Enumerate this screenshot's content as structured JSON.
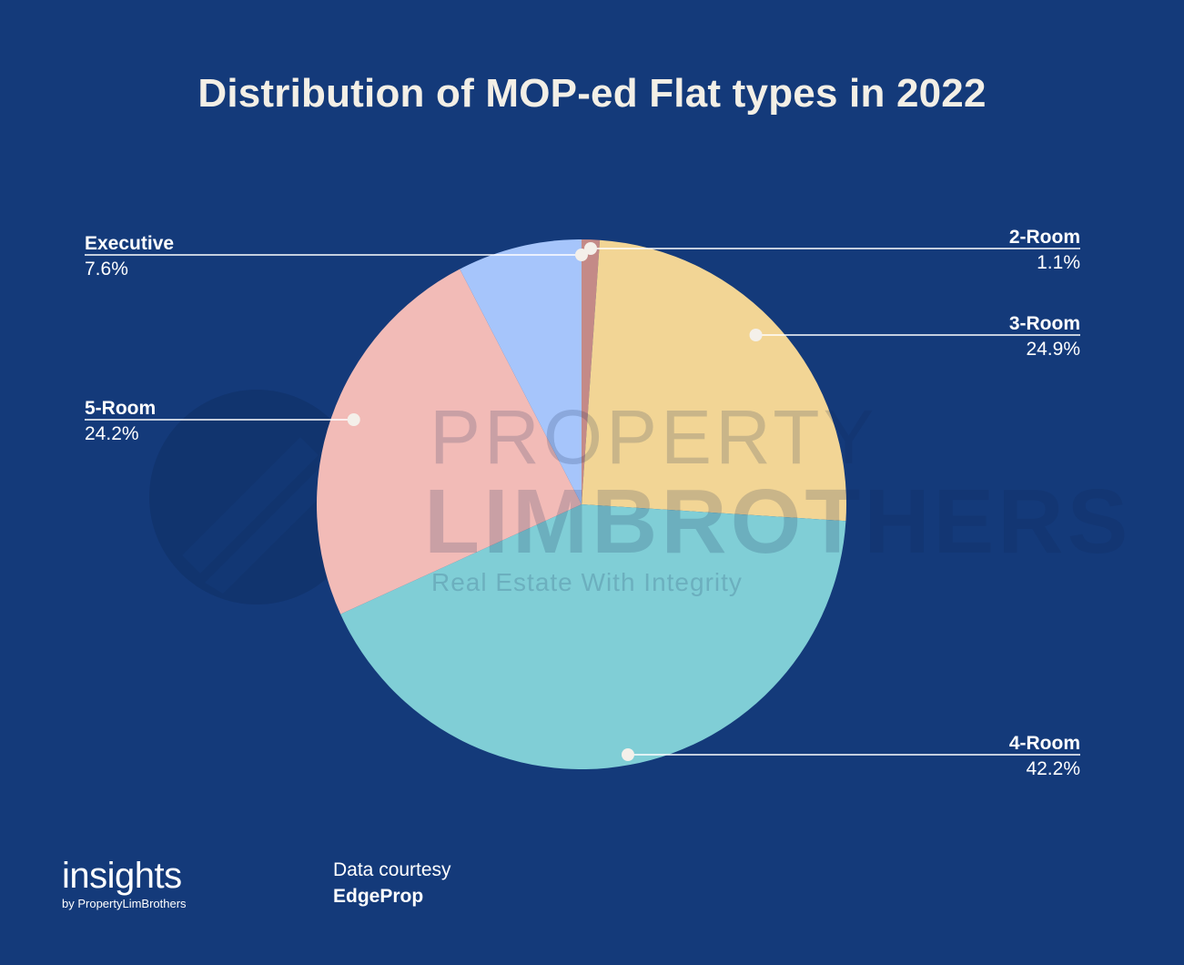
{
  "chart_data": {
    "type": "pie",
    "title": "Distribution of MOP-ed Flat types in 2022",
    "slices": [
      {
        "label": "2-Room",
        "value": 1.1,
        "display": "1.1%",
        "color": "#c48a87"
      },
      {
        "label": "3-Room",
        "value": 24.9,
        "display": "24.9%",
        "color": "#f2d595"
      },
      {
        "label": "4-Room",
        "value": 42.2,
        "display": "42.2%",
        "color": "#80ced6"
      },
      {
        "label": "5-Room",
        "value": 24.2,
        "display": "24.2%",
        "color": "#f2bbb7"
      },
      {
        "label": "Executive",
        "value": 7.6,
        "display": "7.6%",
        "color": "#a6c5fb"
      }
    ]
  },
  "watermark": {
    "line1": "PROPERTY",
    "line2": "LIMBROTHERS",
    "line3": "Real Estate With Integrity"
  },
  "brand": {
    "name": "insights",
    "tagline": "by PropertyLimBrothers"
  },
  "source": {
    "label": "Data courtesy",
    "name": "EdgeProp"
  }
}
